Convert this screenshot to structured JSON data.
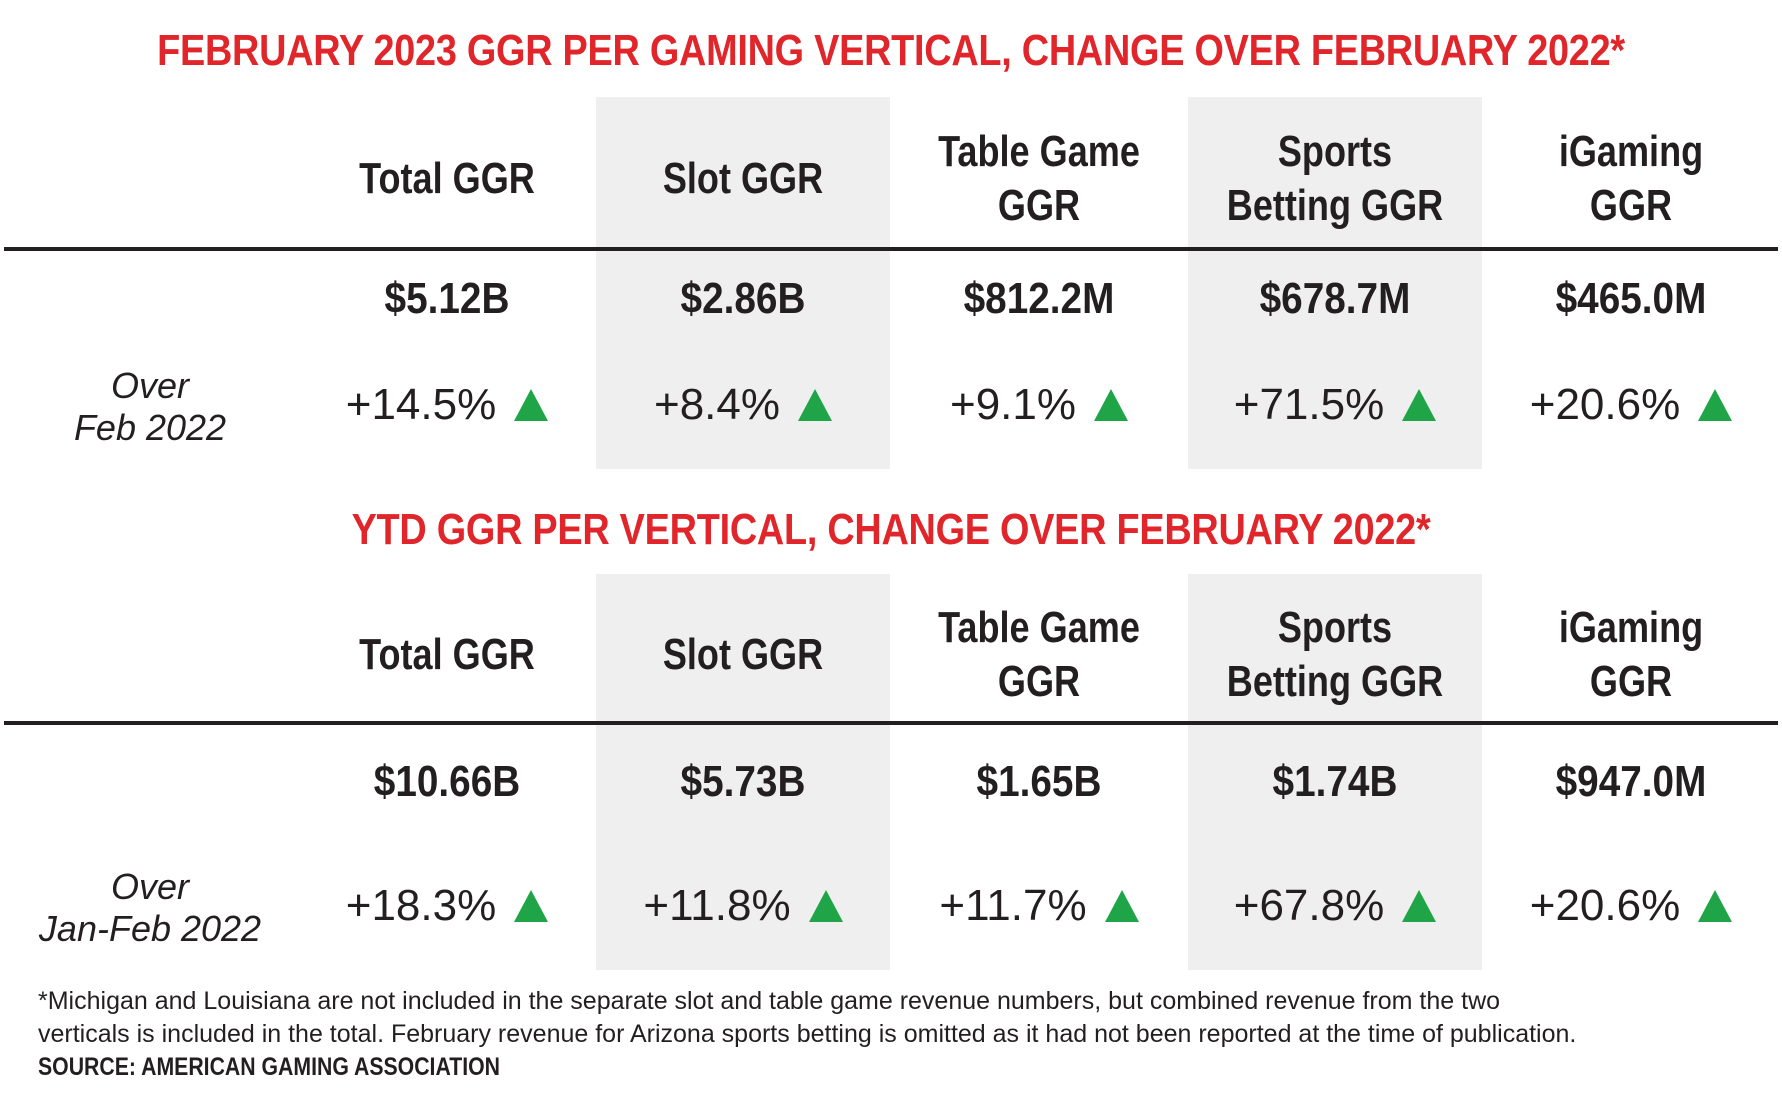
{
  "colors": {
    "title": "#e0262b",
    "shade": "#efefef",
    "up_arrow": "#1fa548",
    "text": "#231f20"
  },
  "sections": [
    {
      "title": "FEBRUARY 2023 GGR PER GAMING VERTICAL, CHANGE OVER FEBRUARY 2022*",
      "columns": [
        {
          "header": [
            "Total GGR"
          ],
          "value": "$5.12B",
          "change": "+14.5%",
          "direction": "up"
        },
        {
          "header": [
            "Slot GGR"
          ],
          "value": "$2.86B",
          "change": "+8.4%",
          "direction": "up"
        },
        {
          "header": [
            "Table Game",
            "GGR"
          ],
          "value": "$812.2M",
          "change": "+9.1%",
          "direction": "up"
        },
        {
          "header": [
            "Sports",
            "Betting GGR"
          ],
          "value": "$678.7M",
          "change": "+71.5%",
          "direction": "up"
        },
        {
          "header": [
            "iGaming",
            "GGR"
          ],
          "value": "$465.0M",
          "change": "+20.6%",
          "direction": "up"
        }
      ],
      "row_label": [
        "Over",
        "Feb 2022"
      ]
    },
    {
      "title": "YTD GGR PER VERTICAL, CHANGE OVER FEBRUARY 2022*",
      "columns": [
        {
          "header": [
            "Total GGR"
          ],
          "value": "$10.66B",
          "change": "+18.3%",
          "direction": "up"
        },
        {
          "header": [
            "Slot GGR"
          ],
          "value": "$5.73B",
          "change": "+11.8%",
          "direction": "up"
        },
        {
          "header": [
            "Table Game",
            "GGR"
          ],
          "value": "$1.65B",
          "change": "+11.7%",
          "direction": "up"
        },
        {
          "header": [
            "Sports",
            "Betting GGR"
          ],
          "value": "$1.74B",
          "change": "+67.8%",
          "direction": "up"
        },
        {
          "header": [
            "iGaming",
            "GGR"
          ],
          "value": "$947.0M",
          "change": "+20.6%",
          "direction": "up"
        }
      ],
      "row_label": [
        "Over",
        "Jan-Feb 2022"
      ]
    }
  ],
  "footnote": {
    "line1": "*Michigan and Louisiana are not included in the separate slot and table game revenue numbers, but combined revenue from the two",
    "line2": "verticals is included in the total. February revenue for Arizona sports betting is omitted as it had not been reported at the time of publication.",
    "source": "SOURCE: AMERICAN GAMING ASSOCIATION"
  }
}
